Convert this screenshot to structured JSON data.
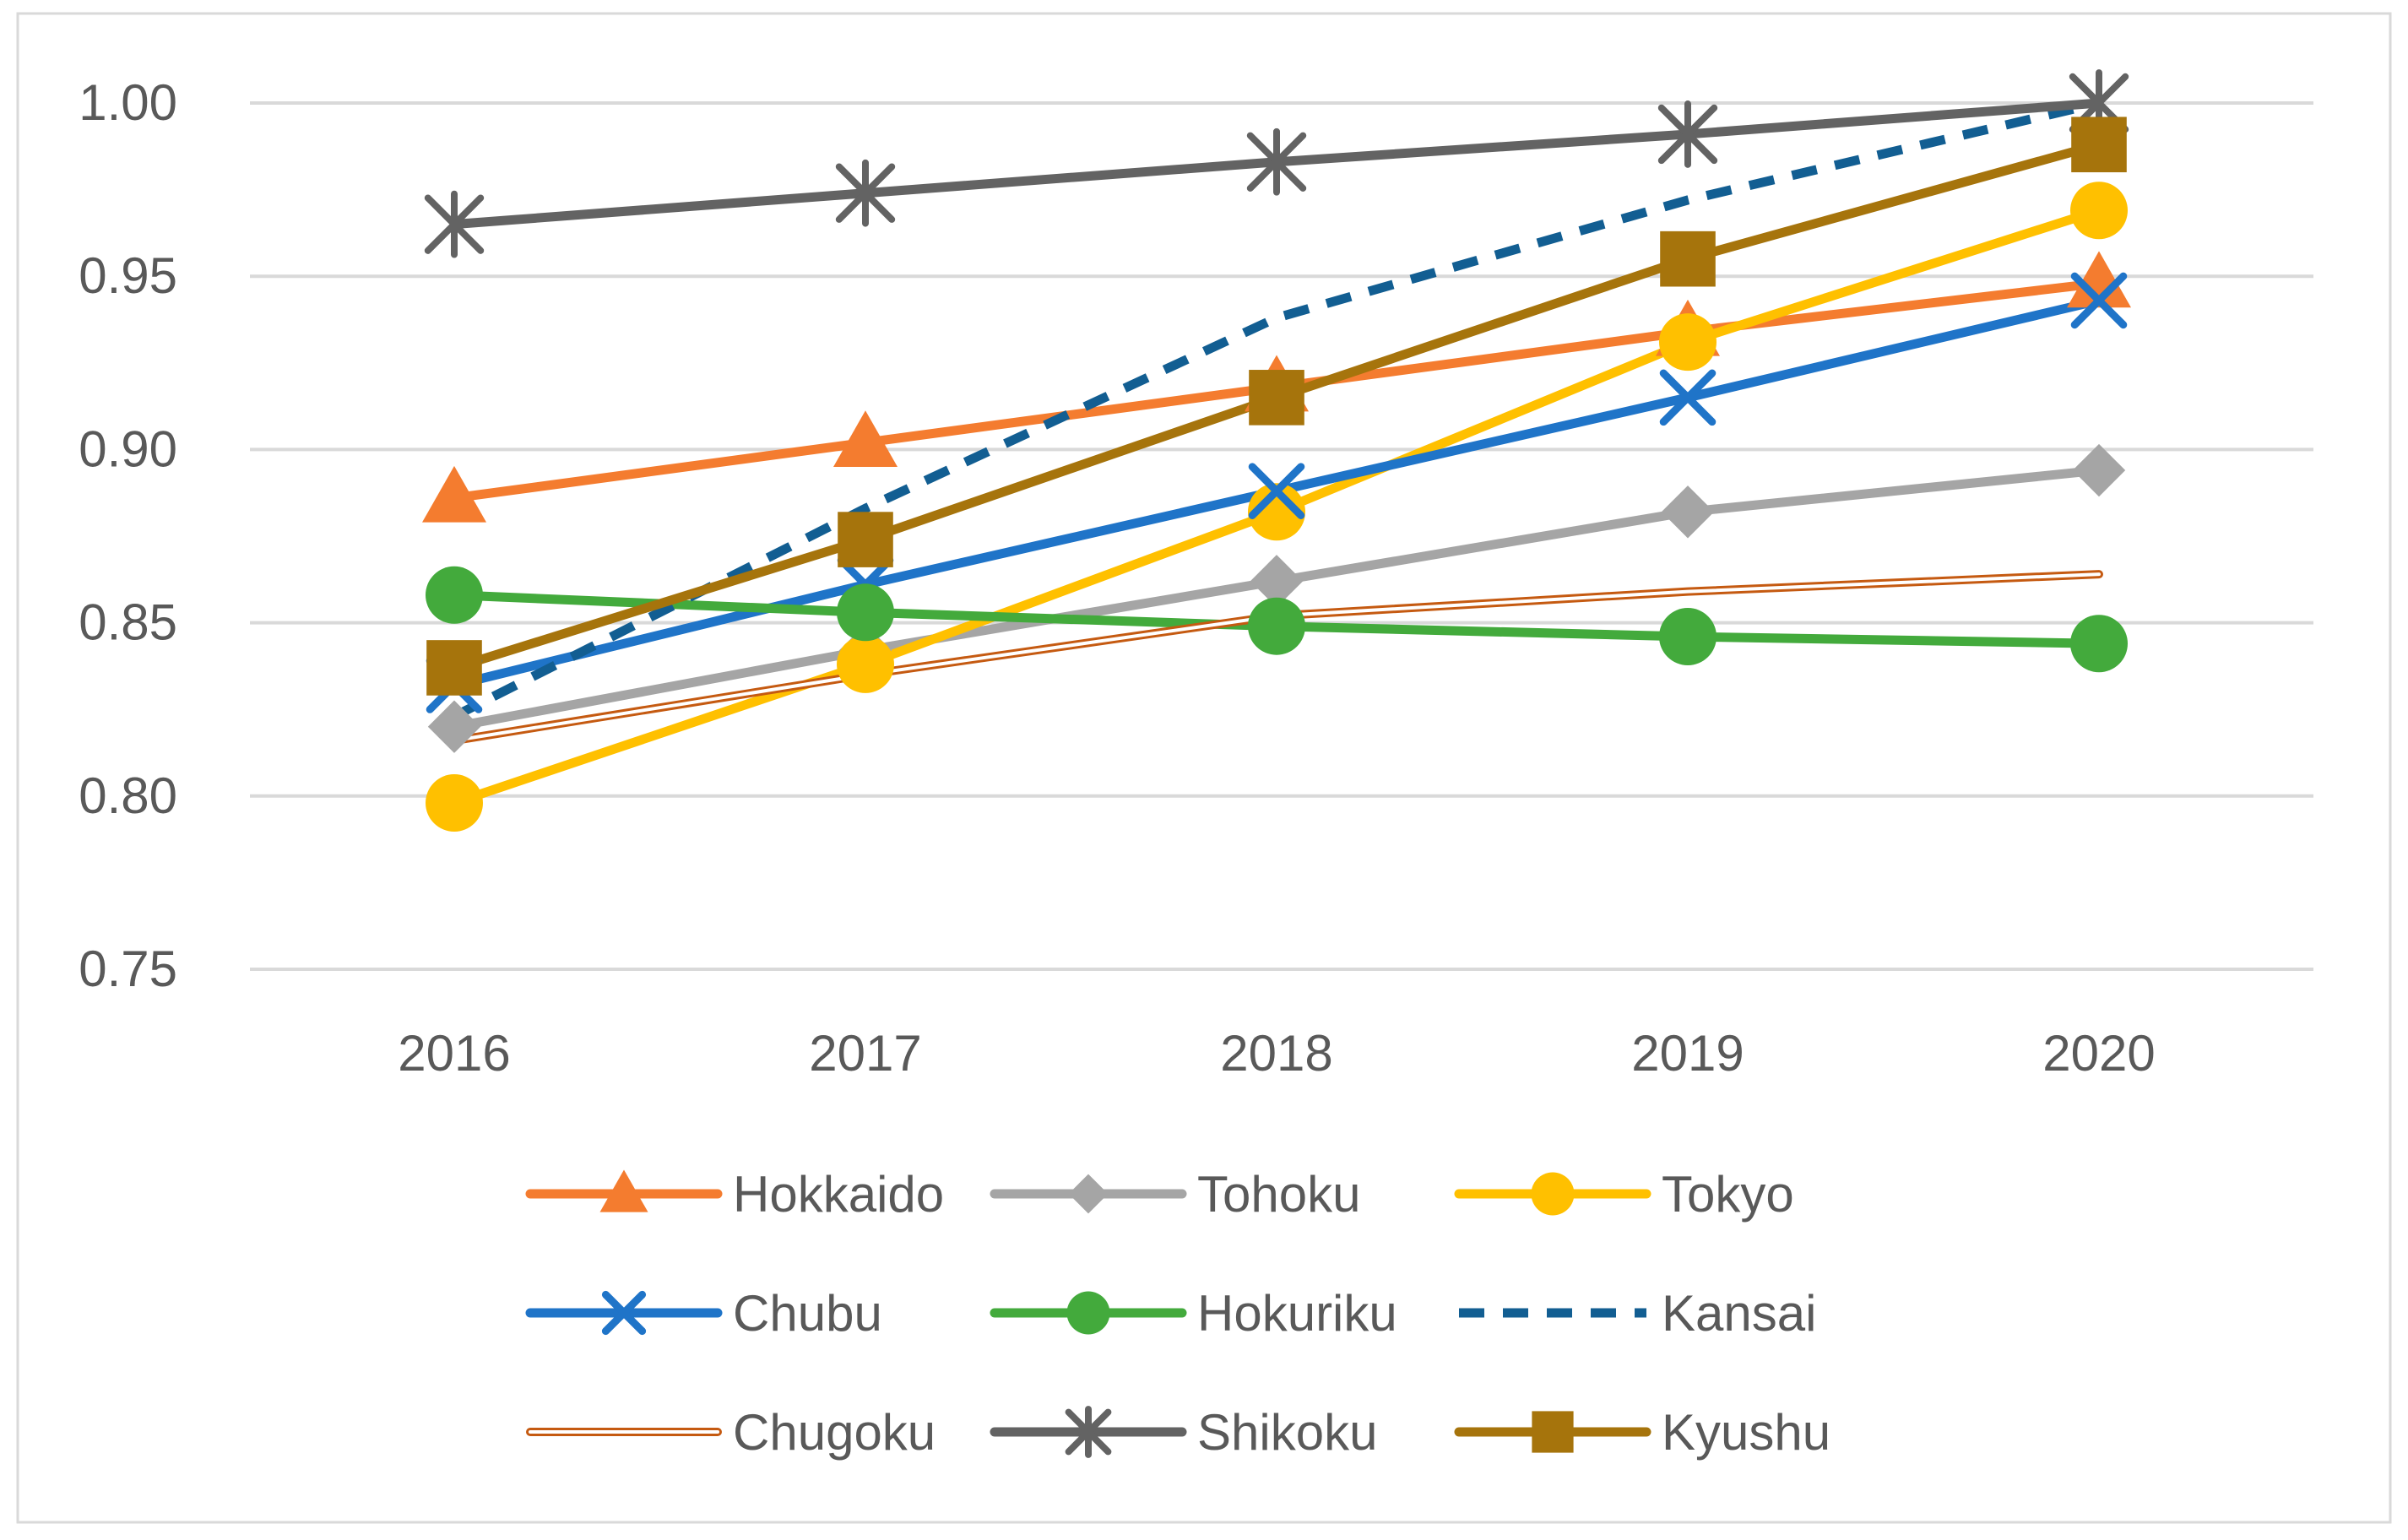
{
  "chart_data": {
    "type": "line",
    "title": "",
    "xlabel": "",
    "ylabel": "",
    "x": [
      "2016",
      "2017",
      "2018",
      "2019",
      "2020"
    ],
    "ylim": [
      0.75,
      1.0
    ],
    "yticks": [
      0.75,
      0.8,
      0.85,
      0.9,
      0.95,
      1.0
    ],
    "ytick_labels": [
      "0.75",
      "0.80",
      "0.85",
      "0.90",
      "0.95",
      "1.00"
    ],
    "grid": true,
    "legend_position": "bottom",
    "series": [
      {
        "name": "Hokkaido",
        "values": [
          0.886,
          0.902,
          0.918,
          0.934,
          0.948
        ],
        "color": "#F47C2F",
        "marker": "triangle",
        "line": "solid"
      },
      {
        "name": "Tohoku",
        "values": [
          0.82,
          0.842,
          0.862,
          0.882,
          0.894
        ],
        "color": "#A5A5A5",
        "marker": "diamond",
        "line": "solid"
      },
      {
        "name": "Tokyo",
        "values": [
          0.798,
          0.838,
          0.882,
          0.931,
          0.969
        ],
        "color": "#FFC000",
        "marker": "circle",
        "line": "solid"
      },
      {
        "name": "Chubu",
        "values": [
          0.832,
          0.861,
          0.888,
          0.915,
          0.943
        ],
        "color": "#1F74C8",
        "marker": "x",
        "line": "solid"
      },
      {
        "name": "Hokuriku",
        "values": [
          0.858,
          0.853,
          0.849,
          0.846,
          0.844
        ],
        "color": "#43AA3C",
        "marker": "circle",
        "line": "solid"
      },
      {
        "name": "Kansai",
        "values": [
          0.823,
          0.883,
          0.938,
          0.972,
          1.0
        ],
        "color": "#125E92",
        "marker": "none",
        "line": "dashed"
      },
      {
        "name": "Chugoku",
        "values": [
          0.816,
          0.835,
          0.852,
          0.859,
          0.864
        ],
        "color": "#C55A11",
        "marker": "none",
        "line": "double"
      },
      {
        "name": "Shikoku",
        "values": [
          0.965,
          0.974,
          0.983,
          0.991,
          1.0
        ],
        "color": "#636363",
        "marker": "asterisk",
        "line": "solid"
      },
      {
        "name": "Kyushu",
        "values": [
          0.837,
          0.874,
          0.915,
          0.955,
          0.988
        ],
        "color": "#A6740C",
        "marker": "square",
        "line": "solid"
      }
    ]
  }
}
